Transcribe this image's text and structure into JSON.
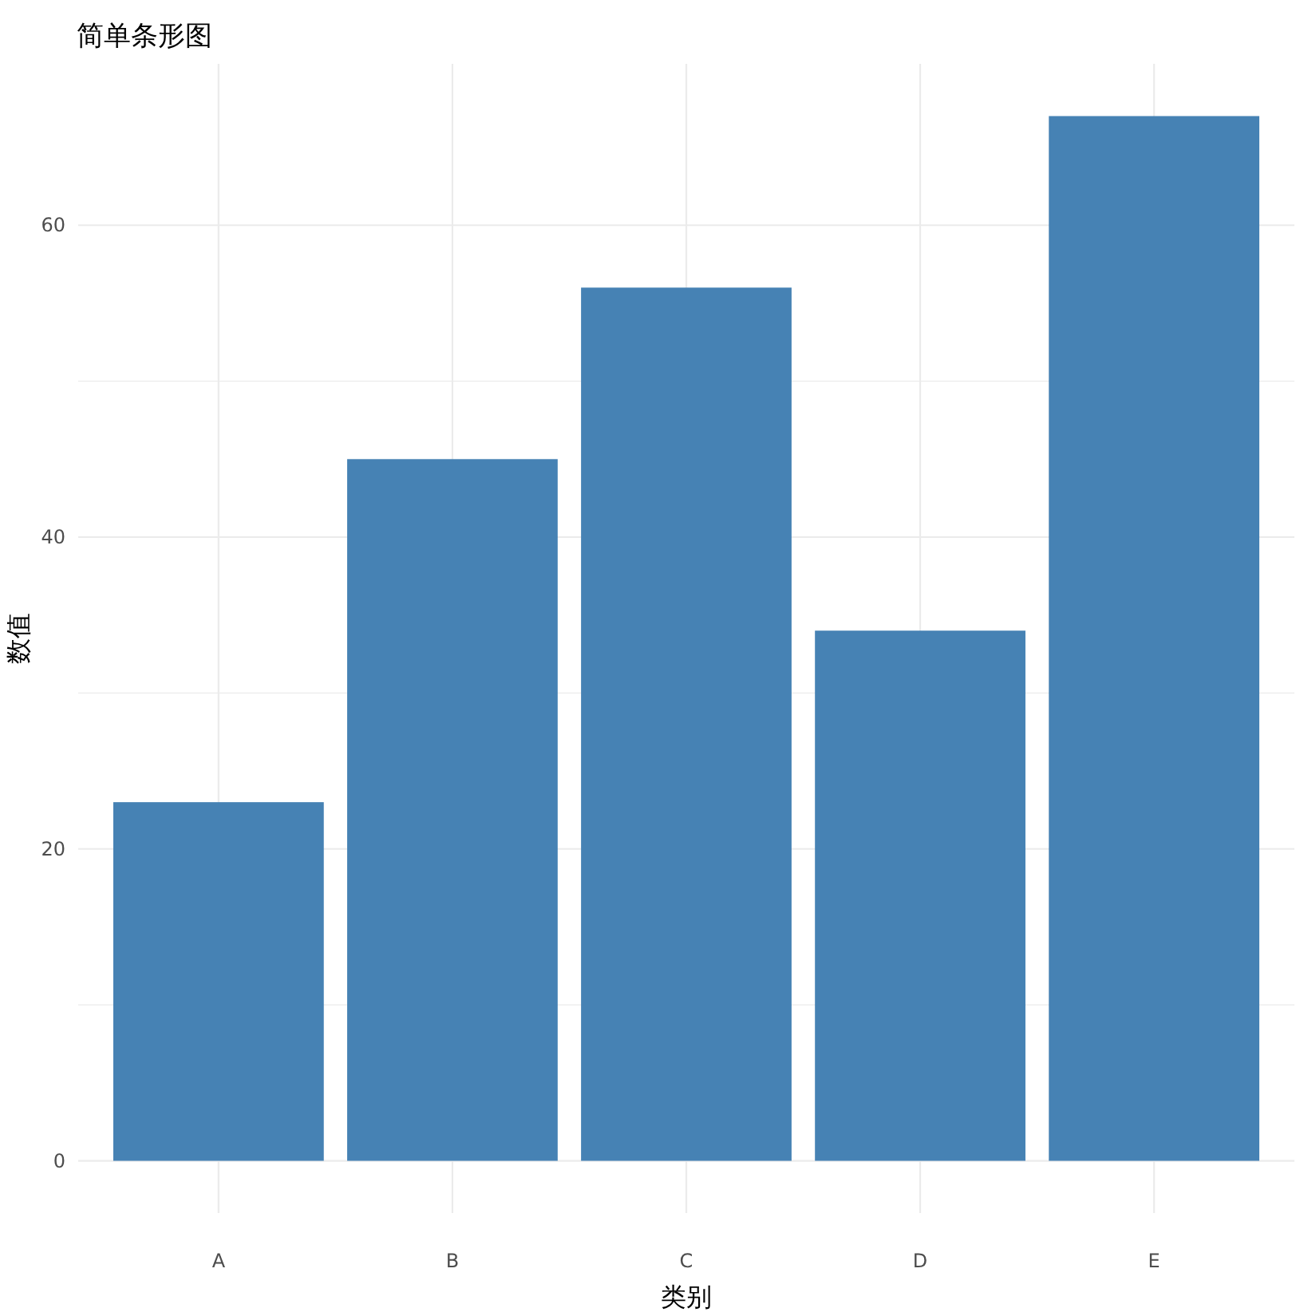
{
  "chart_data": {
    "type": "bar",
    "title": "简单条形图",
    "xlabel": "类别",
    "ylabel": "数值",
    "categories": [
      "A",
      "B",
      "C",
      "D",
      "E"
    ],
    "values": [
      23,
      45,
      56,
      34,
      67
    ],
    "color": "#4682b4",
    "ylim": [
      -3.35,
      70.35
    ],
    "yticks": [
      0,
      {
        "value": 10,
        "label": null
      },
      20,
      {
        "value": 30,
        "label": null
      },
      40,
      {
        "value": 50,
        "label": null
      },
      60
    ],
    "grid": true
  }
}
